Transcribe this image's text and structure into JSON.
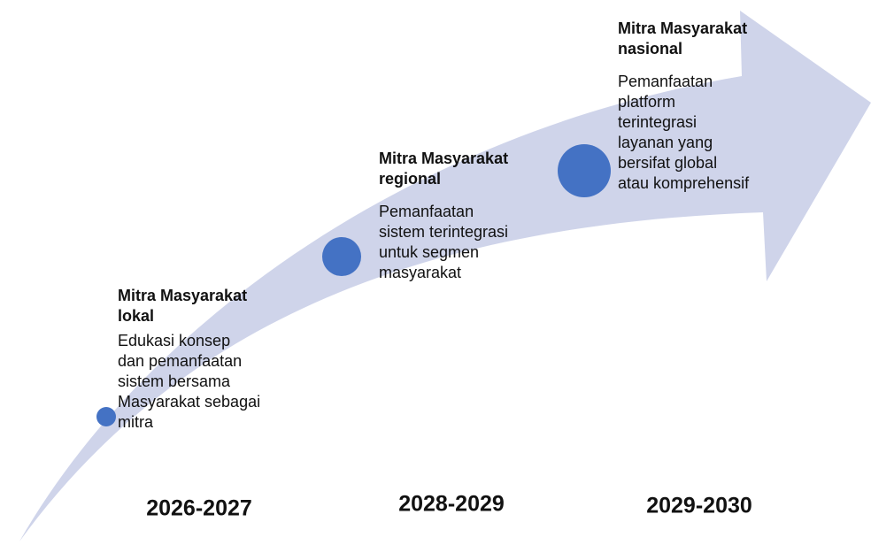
{
  "stages": [
    {
      "title_lines": [
        "Mitra Masyarakat",
        "lokal"
      ],
      "description_lines": [
        "Edukasi konsep",
        "dan pemanfaatan",
        "sistem bersama",
        "Masyarakat sebagai",
        "mitra"
      ],
      "year": "2026-2027"
    },
    {
      "title_lines": [
        "Mitra Masyarakat",
        "regional"
      ],
      "description_lines": [
        "Pemanfaatan",
        "sistem terintegrasi",
        "untuk segmen",
        "masyarakat"
      ],
      "year": "2028-2029"
    },
    {
      "title_lines": [
        "Mitra Masyarakat",
        "nasional"
      ],
      "description_lines": [
        "Pemanfaatan",
        "platform",
        "terintegrasi",
        "layanan yang",
        "bersifat global",
        "atau komprehensif"
      ],
      "year": "2029-2030"
    }
  ]
}
